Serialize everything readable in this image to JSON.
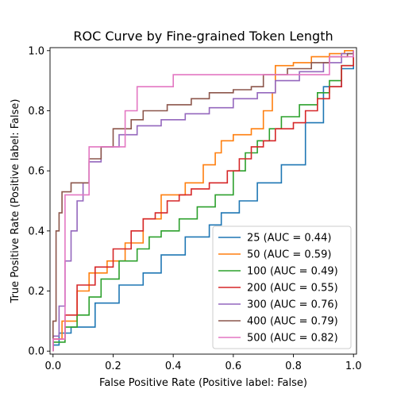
{
  "chart_data": {
    "type": "line",
    "title": "ROC Curve by Fine-grained Token Length",
    "xlabel": "False Positive Rate (Positive label: False)",
    "ylabel": "True Positive Rate (Positive label: False)",
    "xlim": [
      -0.01,
      1.01
    ],
    "ylim": [
      -0.01,
      1.01
    ],
    "x_ticks": [
      0.0,
      0.2,
      0.4,
      0.6,
      0.8,
      1.0
    ],
    "x_tick_labels": [
      "0.0",
      "0.2",
      "0.4",
      "0.6",
      "0.8",
      "1.0"
    ],
    "y_ticks": [
      0.0,
      0.2,
      0.4,
      0.6,
      0.8,
      1.0
    ],
    "y_tick_labels": [
      "0.0",
      "0.2",
      "0.4",
      "0.6",
      "0.8",
      "1.0"
    ],
    "legend_position": "bottom-right",
    "series": [
      {
        "name": "25 (AUC = 0.44)",
        "color": "#1f77b4",
        "x": [
          0.0,
          0.0,
          0.02,
          0.02,
          0.06,
          0.06,
          0.14,
          0.14,
          0.22,
          0.22,
          0.3,
          0.3,
          0.36,
          0.36,
          0.44,
          0.44,
          0.52,
          0.52,
          0.56,
          0.56,
          0.62,
          0.62,
          0.68,
          0.68,
          0.76,
          0.76,
          0.84,
          0.84,
          0.9,
          0.9,
          0.96,
          0.96,
          1.0,
          1.0
        ],
        "y": [
          0.0,
          0.02,
          0.02,
          0.06,
          0.06,
          0.08,
          0.08,
          0.16,
          0.16,
          0.22,
          0.22,
          0.26,
          0.26,
          0.32,
          0.32,
          0.38,
          0.38,
          0.42,
          0.42,
          0.46,
          0.46,
          0.5,
          0.5,
          0.56,
          0.56,
          0.62,
          0.62,
          0.76,
          0.76,
          0.88,
          0.88,
          0.94,
          0.94,
          1.0
        ]
      },
      {
        "name": "50 (AUC = 0.59)",
        "color": "#ff7f0e",
        "x": [
          0.0,
          0.0,
          0.03,
          0.03,
          0.08,
          0.08,
          0.12,
          0.12,
          0.18,
          0.18,
          0.24,
          0.24,
          0.3,
          0.3,
          0.36,
          0.36,
          0.44,
          0.44,
          0.5,
          0.5,
          0.54,
          0.54,
          0.56,
          0.56,
          0.6,
          0.6,
          0.66,
          0.66,
          0.7,
          0.7,
          0.73,
          0.73,
          0.74,
          0.74,
          0.8,
          0.8,
          0.86,
          0.86,
          0.92,
          0.92,
          0.97,
          0.97,
          1.0,
          1.0
        ],
        "y": [
          0.0,
          0.04,
          0.04,
          0.1,
          0.1,
          0.2,
          0.2,
          0.26,
          0.26,
          0.3,
          0.3,
          0.36,
          0.36,
          0.44,
          0.44,
          0.52,
          0.52,
          0.56,
          0.56,
          0.62,
          0.62,
          0.66,
          0.66,
          0.7,
          0.7,
          0.72,
          0.72,
          0.74,
          0.74,
          0.8,
          0.8,
          0.86,
          0.86,
          0.95,
          0.95,
          0.96,
          0.96,
          0.98,
          0.98,
          0.99,
          0.99,
          1.0,
          1.0,
          1.0
        ]
      },
      {
        "name": "100 (AUC = 0.49)",
        "color": "#2ca02c",
        "x": [
          0.0,
          0.0,
          0.04,
          0.04,
          0.08,
          0.08,
          0.12,
          0.12,
          0.16,
          0.16,
          0.22,
          0.22,
          0.28,
          0.28,
          0.32,
          0.32,
          0.36,
          0.36,
          0.42,
          0.42,
          0.48,
          0.48,
          0.54,
          0.54,
          0.6,
          0.6,
          0.64,
          0.64,
          0.68,
          0.68,
          0.72,
          0.72,
          0.76,
          0.76,
          0.82,
          0.82,
          0.88,
          0.88,
          0.92,
          0.92,
          0.96,
          0.96,
          1.0,
          1.0
        ],
        "y": [
          0.0,
          0.03,
          0.03,
          0.08,
          0.08,
          0.12,
          0.12,
          0.18,
          0.18,
          0.24,
          0.24,
          0.3,
          0.3,
          0.34,
          0.34,
          0.38,
          0.38,
          0.4,
          0.4,
          0.44,
          0.44,
          0.48,
          0.48,
          0.52,
          0.52,
          0.6,
          0.6,
          0.66,
          0.66,
          0.7,
          0.7,
          0.74,
          0.74,
          0.78,
          0.78,
          0.82,
          0.82,
          0.86,
          0.86,
          0.9,
          0.9,
          0.95,
          0.95,
          1.0
        ]
      },
      {
        "name": "200 (AUC = 0.55)",
        "color": "#d62728",
        "x": [
          0.0,
          0.0,
          0.04,
          0.04,
          0.08,
          0.08,
          0.14,
          0.14,
          0.2,
          0.2,
          0.26,
          0.26,
          0.3,
          0.3,
          0.34,
          0.34,
          0.38,
          0.38,
          0.42,
          0.42,
          0.46,
          0.46,
          0.52,
          0.52,
          0.58,
          0.58,
          0.62,
          0.62,
          0.66,
          0.66,
          0.7,
          0.7,
          0.74,
          0.74,
          0.8,
          0.8,
          0.84,
          0.84,
          0.88,
          0.88,
          0.92,
          0.92,
          0.96,
          0.96,
          1.0,
          1.0
        ],
        "y": [
          0.0,
          0.04,
          0.04,
          0.12,
          0.12,
          0.22,
          0.22,
          0.28,
          0.28,
          0.34,
          0.34,
          0.4,
          0.4,
          0.44,
          0.44,
          0.46,
          0.46,
          0.5,
          0.5,
          0.52,
          0.52,
          0.54,
          0.54,
          0.56,
          0.56,
          0.6,
          0.6,
          0.64,
          0.64,
          0.68,
          0.68,
          0.7,
          0.7,
          0.74,
          0.74,
          0.76,
          0.76,
          0.8,
          0.8,
          0.84,
          0.84,
          0.88,
          0.88,
          0.95,
          0.95,
          1.0
        ]
      },
      {
        "name": "300 (AUC = 0.76)",
        "color": "#9467bd",
        "x": [
          0.0,
          0.0,
          0.02,
          0.02,
          0.04,
          0.04,
          0.06,
          0.06,
          0.08,
          0.08,
          0.1,
          0.1,
          0.12,
          0.12,
          0.16,
          0.16,
          0.22,
          0.22,
          0.28,
          0.28,
          0.36,
          0.36,
          0.44,
          0.44,
          0.52,
          0.52,
          0.6,
          0.6,
          0.68,
          0.68,
          0.74,
          0.74,
          0.82,
          0.82,
          0.9,
          0.9,
          0.96,
          0.96,
          1.0,
          1.0
        ],
        "y": [
          0.0,
          0.05,
          0.05,
          0.15,
          0.15,
          0.3,
          0.3,
          0.4,
          0.4,
          0.5,
          0.5,
          0.56,
          0.56,
          0.63,
          0.63,
          0.68,
          0.68,
          0.72,
          0.72,
          0.75,
          0.75,
          0.77,
          0.77,
          0.79,
          0.79,
          0.81,
          0.81,
          0.84,
          0.84,
          0.86,
          0.86,
          0.9,
          0.9,
          0.93,
          0.93,
          0.96,
          0.96,
          0.99,
          0.99,
          1.0
        ]
      },
      {
        "name": "400 (AUC = 0.79)",
        "color": "#8c564b",
        "x": [
          0.0,
          0.0,
          0.01,
          0.01,
          0.02,
          0.02,
          0.03,
          0.03,
          0.06,
          0.06,
          0.12,
          0.12,
          0.16,
          0.16,
          0.2,
          0.2,
          0.26,
          0.26,
          0.3,
          0.3,
          0.38,
          0.38,
          0.46,
          0.46,
          0.52,
          0.52,
          0.6,
          0.6,
          0.66,
          0.66,
          0.7,
          0.7,
          0.78,
          0.78,
          0.86,
          0.86,
          0.92,
          0.92,
          0.98,
          0.98,
          1.0,
          1.0
        ],
        "y": [
          0.0,
          0.1,
          0.1,
          0.4,
          0.4,
          0.46,
          0.46,
          0.53,
          0.53,
          0.56,
          0.56,
          0.64,
          0.64,
          0.68,
          0.68,
          0.74,
          0.74,
          0.77,
          0.77,
          0.8,
          0.8,
          0.82,
          0.82,
          0.84,
          0.84,
          0.86,
          0.86,
          0.87,
          0.87,
          0.88,
          0.88,
          0.92,
          0.92,
          0.94,
          0.94,
          0.96,
          0.96,
          0.98,
          0.98,
          0.99,
          0.99,
          1.0
        ]
      },
      {
        "name": "500 (AUC = 0.82)",
        "color": "#e377c2",
        "x": [
          0.0,
          0.0,
          0.04,
          0.04,
          0.12,
          0.12,
          0.24,
          0.24,
          0.28,
          0.28,
          0.4,
          0.4,
          0.92,
          0.92,
          1.0,
          1.0
        ],
        "y": [
          0.0,
          0.04,
          0.04,
          0.52,
          0.52,
          0.68,
          0.68,
          0.8,
          0.8,
          0.88,
          0.88,
          0.92,
          0.92,
          0.98,
          0.98,
          1.0
        ]
      }
    ]
  }
}
